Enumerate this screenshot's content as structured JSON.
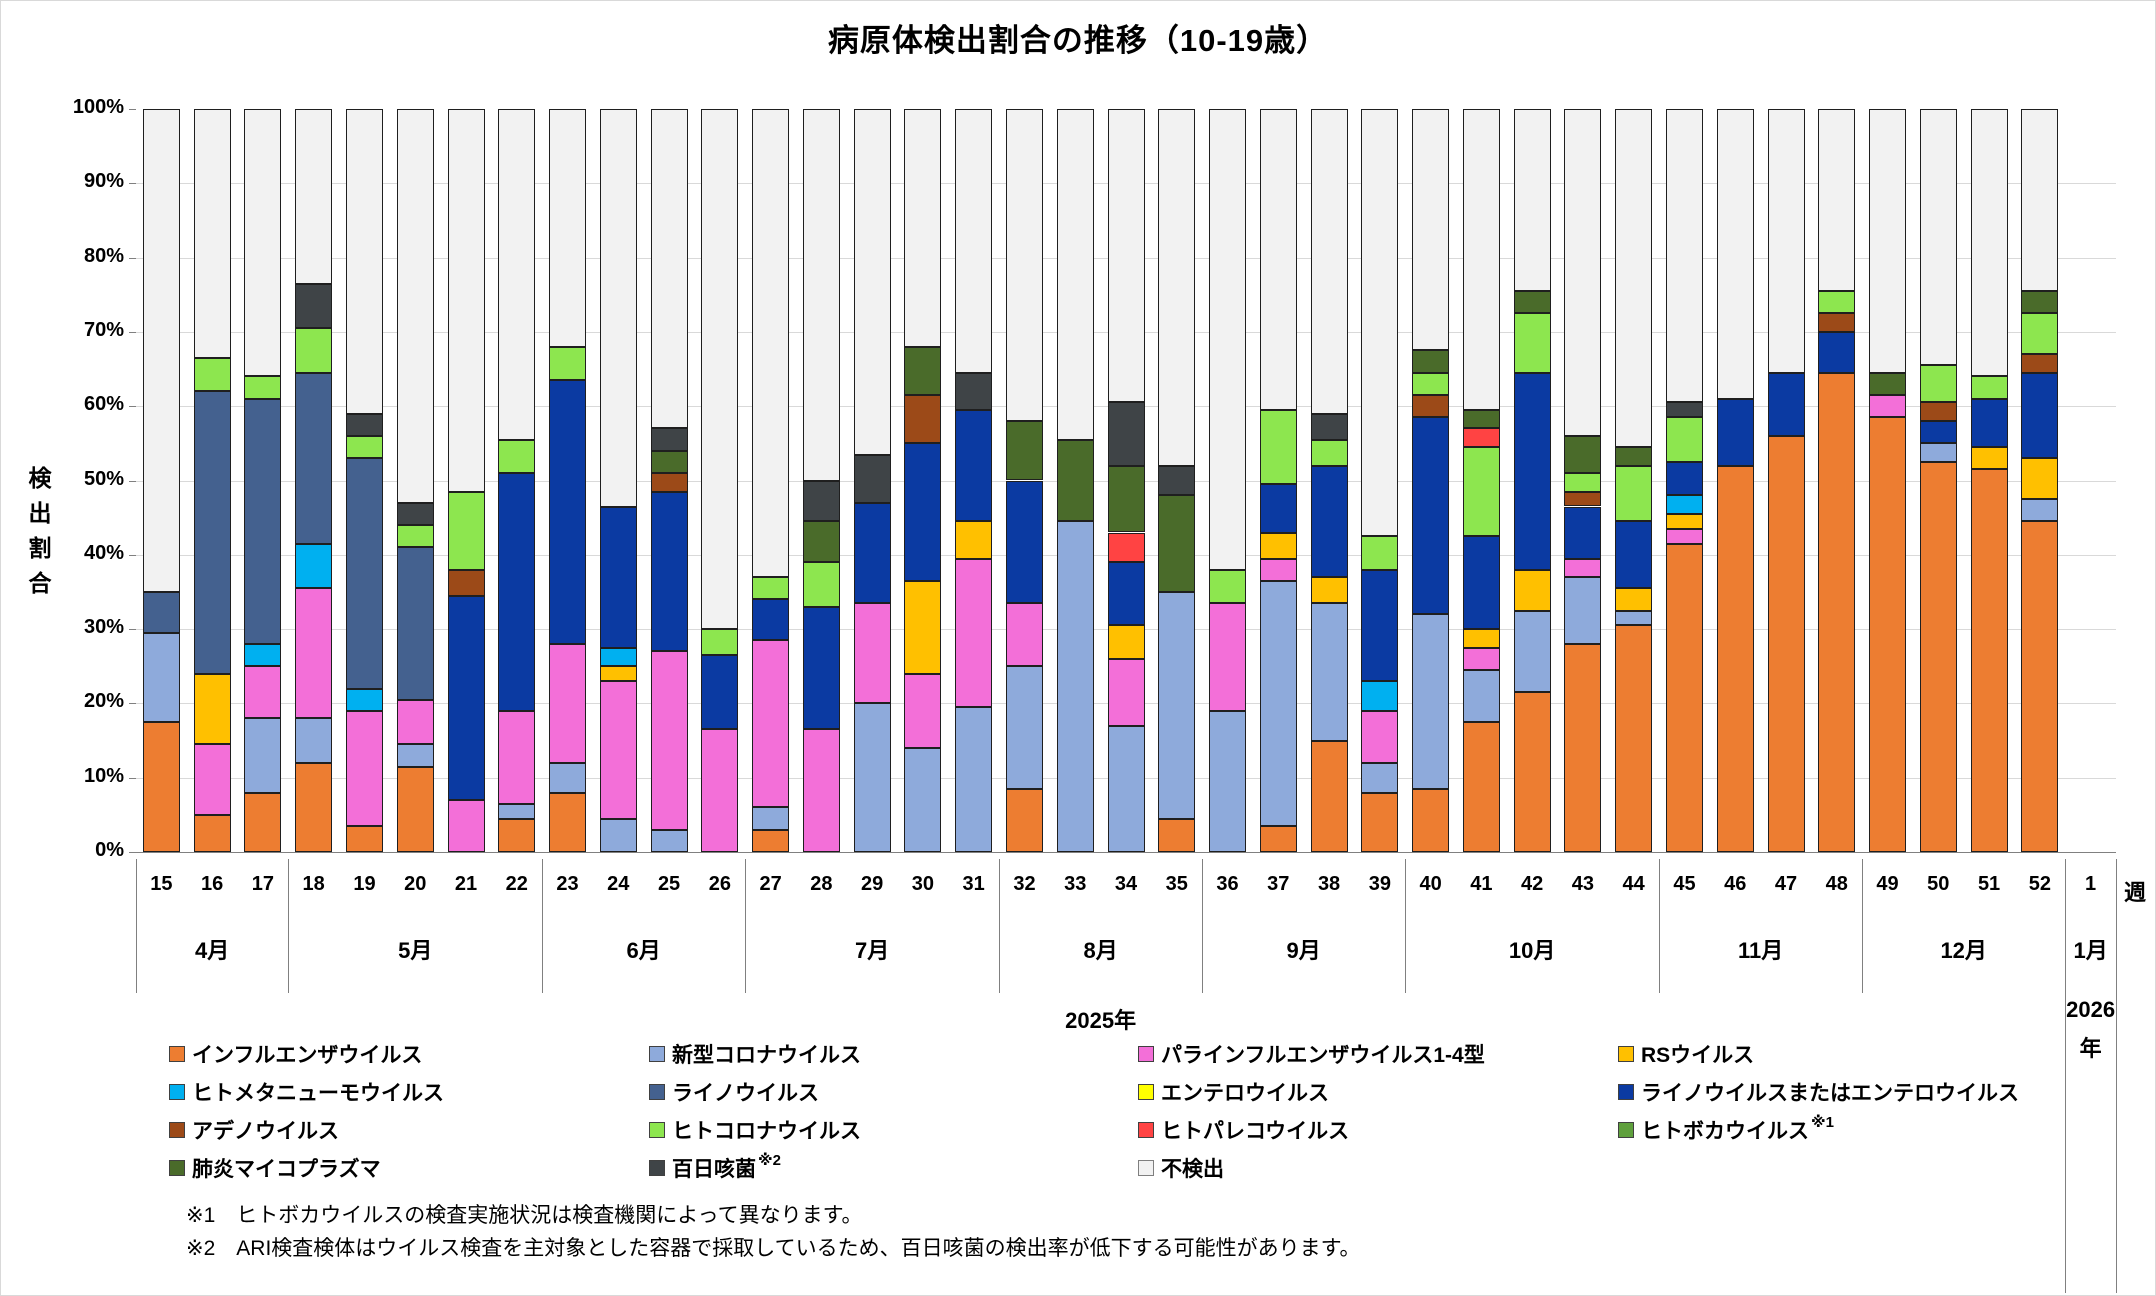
{
  "footnotes": [
    "※1　ヒトボカウイルスの検査実施状況は検査機関によって異なります。",
    "※2　ARI検査検体はウイルス検査を主対象とした容器で採取しているため、百日咳菌の検出率が低下する可能性があります。"
  ],
  "chart_data": {
    "type": "bar",
    "subtype": "stacked-100-percent",
    "title": "病原体検出割合の推移（10-19歳）",
    "ylabel": "検出割合",
    "xlabel": "週",
    "y_axis": {
      "min": 0,
      "max": 100,
      "step": 10,
      "tick_suffix": "%"
    },
    "grid": "horizontal",
    "weeks": [
      15,
      16,
      17,
      18,
      19,
      20,
      21,
      22,
      23,
      24,
      25,
      26,
      27,
      28,
      29,
      30,
      31,
      32,
      33,
      34,
      35,
      36,
      37,
      38,
      39,
      40,
      41,
      42,
      43,
      44,
      45,
      46,
      47,
      48,
      49,
      50,
      51,
      52,
      1
    ],
    "month_groups": [
      {
        "label": "4月",
        "weeks": 3
      },
      {
        "label": "5月",
        "weeks": 5
      },
      {
        "label": "6月",
        "weeks": 4
      },
      {
        "label": "7月",
        "weeks": 5
      },
      {
        "label": "8月",
        "weeks": 4
      },
      {
        "label": "9月",
        "weeks": 4
      },
      {
        "label": "10月",
        "weeks": 5
      },
      {
        "label": "11月",
        "weeks": 4
      },
      {
        "label": "12月",
        "weeks": 4
      },
      {
        "label": "1月",
        "weeks": 1
      }
    ],
    "year_labels": [
      {
        "label": "2025年",
        "months": "4月-12月"
      },
      {
        "label": "2026年",
        "line1": "2026",
        "line2": "年",
        "months": "1月"
      }
    ],
    "series": [
      {
        "name": "インフルエンザウイルス",
        "color": "#ED7D31",
        "values": [
          17.5,
          5,
          8,
          12,
          3.5,
          11.5,
          0,
          4.5,
          8,
          0,
          0,
          0,
          3,
          0,
          0,
          0,
          0,
          8.5,
          0,
          0,
          4.5,
          0,
          3.5,
          15,
          8,
          8.5,
          17.5,
          21.5,
          28,
          30.5,
          41.5,
          52,
          56,
          64.5,
          58.5,
          52.5,
          51.5,
          44.5,
          null
        ]
      },
      {
        "name": "新型コロナウイルス",
        "color": "#8EAADB",
        "values": [
          12,
          0,
          10,
          6,
          0,
          3,
          0,
          2,
          4,
          4.5,
          3,
          0,
          3,
          0,
          20,
          14,
          19.5,
          16.5,
          44.5,
          17,
          30.5,
          19,
          33,
          18.5,
          4,
          23.5,
          7,
          11,
          9,
          2,
          0,
          0,
          0,
          0,
          0,
          2.5,
          0,
          3,
          null
        ]
      },
      {
        "name": "パラインフルエンザウイルス1-4型",
        "color": "#F36FD8",
        "values": [
          0,
          9.5,
          7,
          17.5,
          15.5,
          6,
          7,
          12.5,
          16,
          18.5,
          24,
          16.5,
          22.5,
          16.5,
          13.5,
          10,
          20,
          8.5,
          0,
          9,
          0,
          14.5,
          3,
          0,
          7,
          0,
          3,
          0,
          2.5,
          0,
          2,
          0,
          0,
          0,
          3,
          0,
          0,
          0,
          null
        ]
      },
      {
        "name": "RSウイルス",
        "color": "#FFC000",
        "values": [
          0,
          9.5,
          0,
          0,
          0,
          0,
          0,
          0,
          0,
          2,
          0,
          0,
          0,
          0,
          0,
          12.5,
          5,
          0,
          0,
          4.5,
          0,
          0,
          3.5,
          3.5,
          0,
          0,
          2.5,
          5.5,
          0,
          3,
          2,
          0,
          0,
          0,
          0,
          0,
          3,
          5.5,
          null
        ]
      },
      {
        "name": "ヒトメタニューモウイルス",
        "color": "#00B0F0",
        "values": [
          0,
          0,
          3,
          6,
          3,
          0,
          0,
          0,
          0,
          2.5,
          0,
          0,
          0,
          0,
          0,
          0,
          0,
          0,
          0,
          0,
          0,
          0,
          0,
          0,
          4,
          0,
          0,
          0,
          0,
          0,
          2.5,
          0,
          0,
          0,
          0,
          0,
          0,
          0,
          null
        ]
      },
      {
        "name": "ライノウイルス",
        "color": "#44618F",
        "values": [
          5.5,
          38,
          33,
          23,
          31,
          20.5,
          0,
          0,
          0,
          0,
          0,
          0,
          0,
          0,
          0,
          0,
          0,
          0,
          0,
          0,
          0,
          0,
          0,
          0,
          0,
          0,
          0,
          0,
          0,
          0,
          0,
          0,
          0,
          0,
          0,
          0,
          0,
          0,
          null
        ]
      },
      {
        "name": "エンテロウイルス",
        "color": "#FFFF00",
        "values": [
          0,
          0,
          0,
          0,
          0,
          0,
          0,
          0,
          0,
          0,
          0,
          0,
          0,
          0,
          0,
          0,
          0,
          0,
          0,
          0,
          0,
          0,
          0,
          0,
          0,
          0,
          0,
          0,
          0,
          0,
          0,
          0,
          0,
          0,
          0,
          0,
          0,
          0,
          null
        ]
      },
      {
        "name": "ライノウイルスまたはエンテロウイルス",
        "color": "#0B3AA2",
        "values": [
          0,
          0,
          0,
          0,
          0,
          0,
          27.5,
          32,
          35.5,
          19,
          21.5,
          10,
          5.5,
          16.5,
          13.5,
          18.5,
          15,
          16.5,
          0,
          8.5,
          0,
          0,
          6.5,
          15,
          15,
          26.5,
          12.5,
          26.5,
          7,
          9,
          4.5,
          9,
          8.5,
          5.5,
          0,
          3,
          6.5,
          11.5,
          null
        ]
      },
      {
        "name": "アデノウイルス",
        "color": "#9C4A18",
        "values": [
          0,
          0,
          0,
          0,
          0,
          0,
          3.5,
          0,
          0,
          0,
          2.5,
          0,
          0,
          0,
          0,
          6.5,
          0,
          0,
          0,
          0,
          0,
          0,
          0,
          0,
          0,
          3,
          0,
          0,
          2,
          0,
          0,
          0,
          0,
          2.5,
          0,
          2.5,
          0,
          2.5,
          null
        ]
      },
      {
        "name": "ヒトコロナウイルス",
        "color": "#8DE64F",
        "values": [
          0,
          4.5,
          3,
          6,
          3,
          3,
          10.5,
          4.5,
          4.5,
          0,
          0,
          3.5,
          3,
          6,
          0,
          0,
          0,
          0,
          0,
          0,
          0,
          4.5,
          10,
          3.5,
          4.5,
          3,
          12,
          8,
          2.5,
          7.5,
          6,
          0,
          0,
          3,
          0,
          5,
          3,
          5.5,
          null
        ]
      },
      {
        "name": "ヒトパレコウイルス",
        "color": "#FF4343",
        "values": [
          0,
          0,
          0,
          0,
          0,
          0,
          0,
          0,
          0,
          0,
          0,
          0,
          0,
          0,
          0,
          0,
          0,
          0,
          0,
          4,
          0,
          0,
          0,
          0,
          0,
          0,
          2.5,
          0,
          0,
          0,
          0,
          0,
          0,
          0,
          0,
          0,
          0,
          0,
          null
        ]
      },
      {
        "name": "ヒトボカウイルス",
        "sup": "※1",
        "color": "#5FA03D",
        "values": [
          0,
          0,
          0,
          0,
          0,
          0,
          0,
          0,
          0,
          0,
          0,
          0,
          0,
          0,
          0,
          0,
          0,
          0,
          0,
          0,
          0,
          0,
          0,
          0,
          0,
          0,
          0,
          0,
          0,
          0,
          0,
          0,
          0,
          0,
          0,
          0,
          0,
          0,
          null
        ]
      },
      {
        "name": "肺炎マイコプラズマ",
        "color": "#4A6B2A",
        "values": [
          0,
          0,
          0,
          0,
          0,
          0,
          0,
          0,
          0,
          0,
          3,
          0,
          0,
          5.5,
          0,
          6.5,
          0,
          8,
          11,
          9,
          13,
          0,
          0,
          0,
          0,
          3,
          2.5,
          3,
          5,
          2.5,
          0,
          0,
          0,
          0,
          3,
          0,
          0,
          3,
          null
        ]
      },
      {
        "name": "百日咳菌",
        "sup": "※2",
        "color": "#3F4447",
        "values": [
          0,
          0,
          0,
          6,
          3,
          3,
          0,
          0,
          0,
          0,
          3,
          0,
          0,
          5.5,
          6.5,
          0,
          5,
          0,
          0,
          8.5,
          4,
          0,
          0,
          3.5,
          0,
          0,
          0,
          0,
          0,
          0,
          2,
          0,
          0,
          0,
          0,
          0,
          0,
          0,
          null
        ]
      },
      {
        "name": "不検出",
        "color": "#F2F2F2",
        "values": [
          65,
          33.5,
          36,
          23.5,
          41,
          53,
          51.5,
          44.5,
          32,
          53.5,
          43,
          70,
          63,
          50,
          46.5,
          32,
          35.5,
          42,
          44.5,
          39.5,
          48,
          62,
          40.5,
          41,
          57.5,
          32.5,
          40.5,
          24.5,
          44,
          45.5,
          39.5,
          39,
          35.5,
          24.5,
          35.5,
          34.5,
          36,
          24.5,
          null
        ]
      }
    ]
  }
}
